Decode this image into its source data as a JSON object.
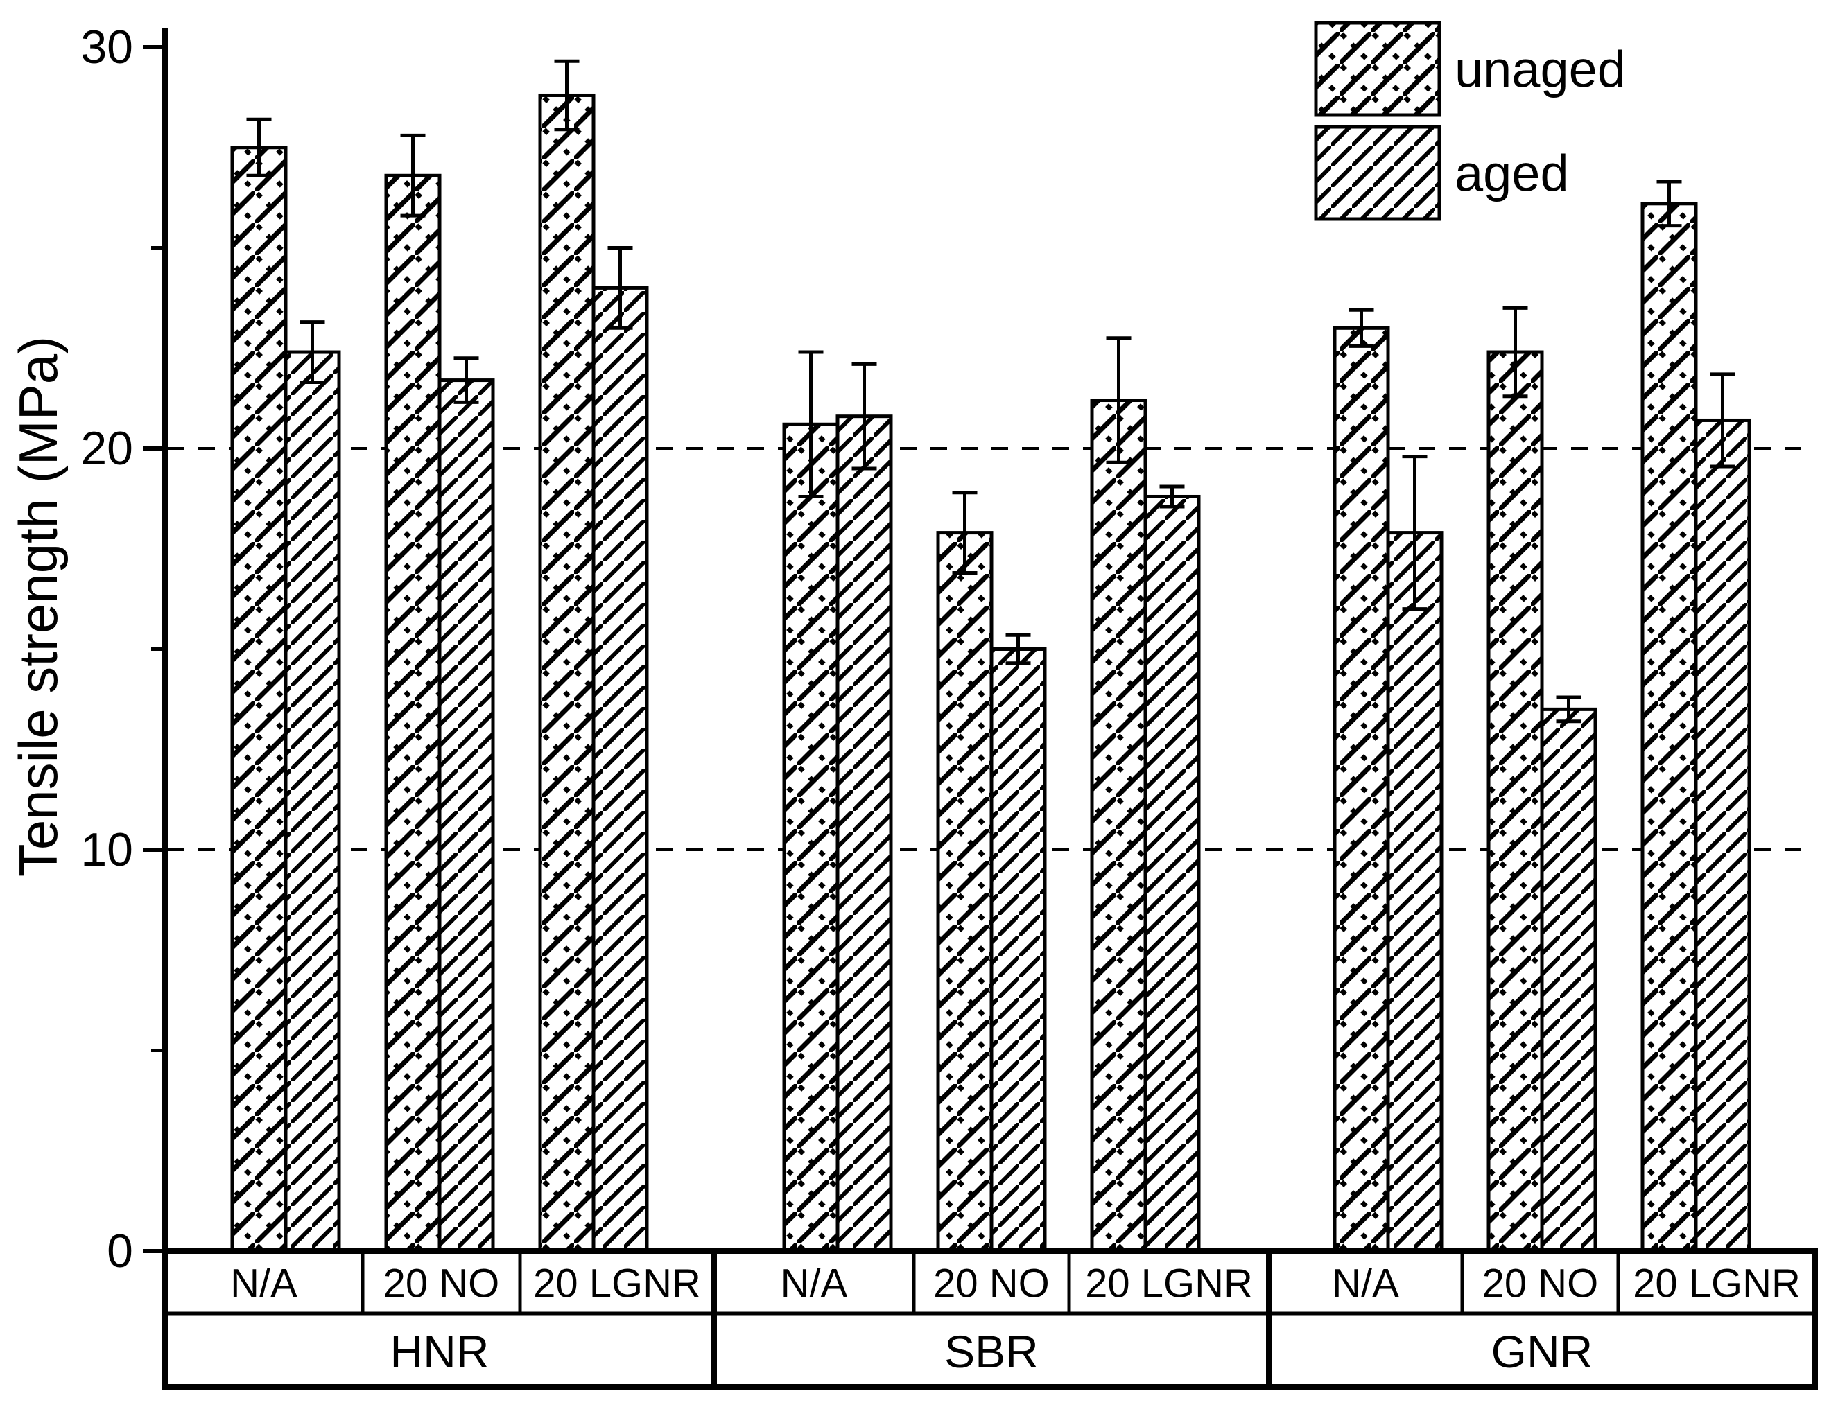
{
  "page": {
    "background": "#ffffff",
    "foreground": "#000000"
  },
  "chart_data": {
    "type": "bar",
    "title": "",
    "ylabel": "Tensile strength (MPa)",
    "xlabel": "",
    "ylim": [
      0,
      30
    ],
    "yticks_major": [
      0,
      10,
      20,
      30
    ],
    "yticks_minor": [
      5,
      15,
      25
    ],
    "gridlines_dashed_at": [
      10,
      20
    ],
    "grid": "horizontal-dashed",
    "legend_position": "top-right",
    "series": [
      {
        "name": "unaged",
        "pattern": "diagonal-crosshatch-dotted",
        "color": "#000000"
      },
      {
        "name": "aged",
        "pattern": "diagonal-lines",
        "color": "#000000"
      }
    ],
    "groups": [
      {
        "label": "HNR",
        "subgroups": [
          {
            "label": "N/A",
            "values": {
              "unaged": 27.5,
              "aged": 22.4
            },
            "errors": {
              "unaged": 0.7,
              "aged": 0.75
            }
          },
          {
            "label": "20 NO",
            "values": {
              "unaged": 26.8,
              "aged": 21.7
            },
            "errors": {
              "unaged": 1.0,
              "aged": 0.55
            }
          },
          {
            "label": "20 LGNR",
            "values": {
              "unaged": 28.8,
              "aged": 24.0
            },
            "errors": {
              "unaged": 0.85,
              "aged": 1.0
            }
          }
        ]
      },
      {
        "label": "SBR",
        "subgroups": [
          {
            "label": "N/A",
            "values": {
              "unaged": 20.6,
              "aged": 20.8
            },
            "errors": {
              "unaged": 1.8,
              "aged": 1.3
            }
          },
          {
            "label": "20 NO",
            "values": {
              "unaged": 17.9,
              "aged": 15.0
            },
            "errors": {
              "unaged": 1.0,
              "aged": 0.35
            }
          },
          {
            "label": "20 LGNR",
            "values": {
              "unaged": 21.2,
              "aged": 18.8
            },
            "errors": {
              "unaged": 1.55,
              "aged": 0.25
            }
          }
        ]
      },
      {
        "label": "GNR",
        "subgroups": [
          {
            "label": "N/A",
            "values": {
              "unaged": 23.0,
              "aged": 17.9
            },
            "errors": {
              "unaged": 0.45,
              "aged": 1.9
            }
          },
          {
            "label": "20 NO",
            "values": {
              "unaged": 22.4,
              "aged": 13.5
            },
            "errors": {
              "unaged": 1.1,
              "aged": 0.3
            }
          },
          {
            "label": "20 LGNR",
            "values": {
              "unaged": 26.1,
              "aged": 20.7
            },
            "errors": {
              "unaged": 0.55,
              "aged": 1.15
            }
          }
        ]
      }
    ]
  }
}
